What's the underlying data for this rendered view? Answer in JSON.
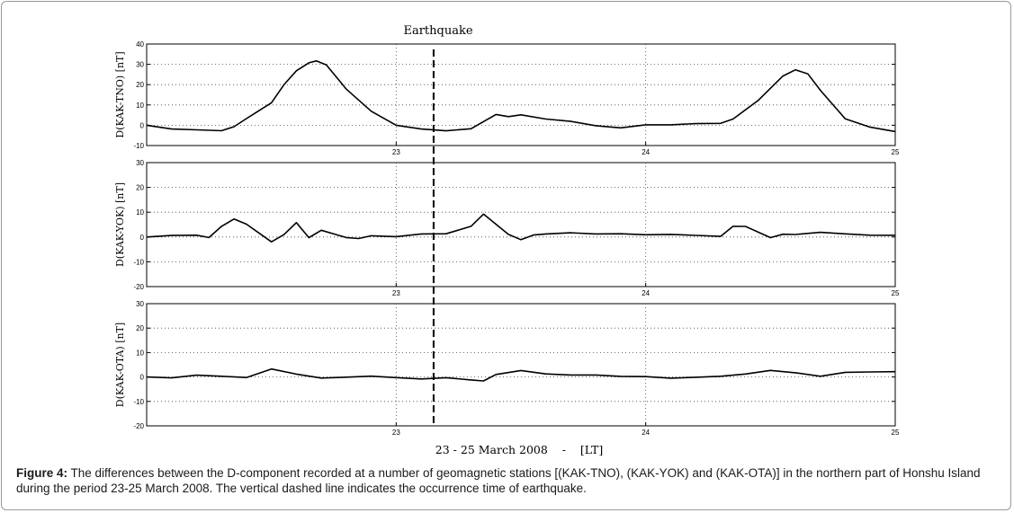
{
  "figure": {
    "annotation": "Earthquake",
    "xlabel": "23 - 25 March 2008    -    [LT]",
    "caption_label": "Figure 4:",
    "caption_text": " The differences between the D-component recorded at a number of geomagnetic stations [(KAK-TNO), (KAK-YOK) and (KAK-OTA)] in the northern part of Honshu Island during the period 23-25 March 2008. The vertical dashed line indicates the occurrence time of earthquake."
  },
  "chart_data": [
    {
      "type": "line",
      "ylabel": "D(KAK-TNO) [nT]",
      "ylim": [
        -10,
        40
      ],
      "yticks": [
        -10,
        0,
        10,
        20,
        30,
        40
      ],
      "xlim": [
        22,
        25
      ],
      "xticks": [
        23,
        24,
        25
      ],
      "grid": true,
      "event_x": 23.15,
      "series": [
        {
          "x": [
            22.0,
            22.1,
            22.2,
            22.3,
            22.35,
            22.4,
            22.45,
            22.5,
            22.55,
            22.6,
            22.65,
            22.68,
            22.72,
            22.8,
            22.9,
            23.0,
            23.1,
            23.2,
            23.3,
            23.4,
            23.45,
            23.5,
            23.6,
            23.7,
            23.8,
            23.9,
            24.0,
            24.1,
            24.2,
            24.3,
            24.35,
            24.45,
            24.55,
            24.6,
            24.65,
            24.7,
            24.8,
            24.9,
            25.0
          ],
          "y": [
            0,
            -2,
            -2.5,
            -3,
            -1,
            3,
            7,
            11,
            20,
            27,
            31,
            32,
            30,
            18,
            7,
            0,
            -2,
            -3,
            -2,
            5,
            4,
            5,
            3,
            2,
            0,
            -1,
            0.5,
            0.5,
            1,
            1,
            3,
            12,
            24,
            27,
            25,
            17,
            3,
            -1,
            -3
          ]
        }
      ]
    },
    {
      "type": "line",
      "ylabel": "D(KAK-YOK) [nT]",
      "ylim": [
        -20,
        30
      ],
      "yticks": [
        -20,
        -10,
        0,
        10,
        20,
        30
      ],
      "xlim": [
        22,
        25
      ],
      "xticks": [
        23,
        24,
        25
      ],
      "grid": true,
      "event_x": 23.15,
      "series": [
        {
          "x": [
            22.0,
            22.1,
            22.2,
            22.25,
            22.3,
            22.35,
            22.4,
            22.5,
            22.55,
            22.6,
            22.65,
            22.7,
            22.75,
            22.8,
            22.85,
            22.9,
            23.0,
            23.1,
            23.2,
            23.3,
            23.35,
            23.4,
            23.45,
            23.5,
            23.55,
            23.6,
            23.7,
            23.8,
            23.9,
            24.0,
            24.1,
            24.2,
            24.3,
            24.35,
            24.4,
            24.5,
            24.55,
            24.6,
            24.7,
            24.8,
            24.9,
            25.0
          ],
          "y": [
            0,
            0.5,
            0.5,
            -0.5,
            4,
            7,
            5,
            -2,
            1,
            6,
            0,
            3,
            1.5,
            0,
            -0.5,
            0.5,
            0,
            1,
            1,
            4,
            9,
            5,
            1,
            -1,
            1,
            1.5,
            2,
            1.5,
            1.5,
            1,
            1,
            0.5,
            0,
            4,
            4,
            -0.5,
            1,
            1,
            2,
            1.5,
            1,
            1
          ]
        }
      ]
    },
    {
      "type": "line",
      "ylabel": "D(KAK-OTA) [nT]",
      "ylim": [
        -20,
        30
      ],
      "yticks": [
        -20,
        -10,
        0,
        10,
        20,
        30
      ],
      "xlim": [
        22,
        25
      ],
      "xticks": [
        23,
        24,
        25
      ],
      "grid": true,
      "event_x": 23.15,
      "series": [
        {
          "x": [
            22.0,
            22.1,
            22.2,
            22.3,
            22.4,
            22.5,
            22.6,
            22.7,
            22.8,
            22.9,
            23.0,
            23.1,
            23.2,
            23.3,
            23.35,
            23.4,
            23.5,
            23.6,
            23.7,
            23.8,
            23.9,
            24.0,
            24.1,
            24.2,
            24.3,
            24.4,
            24.5,
            24.6,
            24.7,
            24.8,
            24.9,
            25.0
          ],
          "y": [
            0,
            -0.5,
            0.5,
            0,
            -0.5,
            3,
            1,
            -0.5,
            0,
            0.5,
            0,
            -0.5,
            0,
            -1,
            -1.5,
            1,
            2.5,
            1,
            0.5,
            0.5,
            0,
            0,
            -0.5,
            0,
            0.5,
            1.5,
            3,
            2,
            0.5,
            2,
            2,
            2
          ]
        }
      ]
    }
  ]
}
